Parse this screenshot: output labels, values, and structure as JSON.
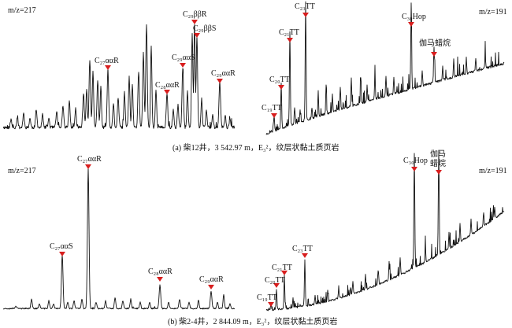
{
  "figure": {
    "captions": [
      {
        "id": "a",
        "text": "(a) 柴12井，3 542.97 m，E₃²，纹层状黏土质页岩"
      },
      {
        "id": "b",
        "text": "(b) 柴2-4井，2 844.09 m，E₃²，纹层状黏土质页岩"
      }
    ],
    "mz_labels": {
      "m217": "m/z=217",
      "m191": "m/z=191"
    }
  },
  "chart_data": [
    {
      "type": "line",
      "id": "a217",
      "mz": "m/z=217",
      "peaks": [
        {
          "label": "C₂₇ααR",
          "rel": 0.63
        },
        {
          "label": "C₂₈ααR",
          "rel": 0.46
        },
        {
          "label": "C₂₉ααS",
          "rel": 0.66
        },
        {
          "label": "C₂₉ββR",
          "rel": 0.88
        },
        {
          "label": "C₂₉ββS",
          "rel": 0.83
        },
        {
          "label": "C₂₉ααR",
          "rel": 0.54
        }
      ]
    },
    {
      "type": "line",
      "id": "a191",
      "mz": "m/z=191",
      "peaks": [
        {
          "label": "C₁₉TT",
          "rel": 0.18
        },
        {
          "label": "C₂₀TT",
          "rel": 0.4
        },
        {
          "label": "C₂₁TT",
          "rel": 0.72
        },
        {
          "label": "C₂₃TT",
          "rel": 1.0
        },
        {
          "label": "C₃₀Hop",
          "rel": 0.72
        },
        {
          "label": "伽马蜡烷",
          "rel": 0.55
        }
      ]
    },
    {
      "type": "line",
      "id": "b217",
      "mz": "m/z=217",
      "peaks": [
        {
          "label": "C₂₇ααS",
          "rel": 0.36
        },
        {
          "label": "C₂₇ααR",
          "rel": 1.0
        },
        {
          "label": "C₂₈ααR",
          "rel": 0.15
        },
        {
          "label": "C₂₉ααR",
          "rel": 0.12
        }
      ]
    },
    {
      "type": "line",
      "id": "b191",
      "mz": "m/z=191",
      "peaks": [
        {
          "label": "C₁₉TT",
          "rel": 0.05
        },
        {
          "label": "C₂₀TT",
          "rel": 0.12
        },
        {
          "label": "C₂₁TT",
          "rel": 0.2
        },
        {
          "label": "C₂₃TT",
          "rel": 0.27
        },
        {
          "label": "C₃₀Hop",
          "rel": 0.86
        },
        {
          "label": "伽马蜡烷",
          "rel": 0.78
        }
      ]
    }
  ]
}
